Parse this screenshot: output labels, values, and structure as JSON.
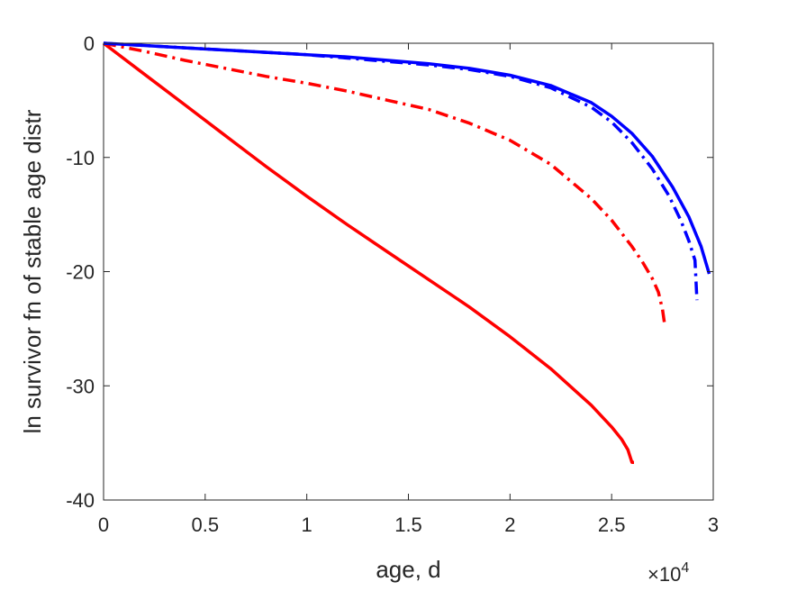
{
  "chart_data": {
    "type": "line",
    "title": "",
    "xlabel": "age, d",
    "ylabel": "ln survivor fn of stable age distr",
    "x_exponent_label": {
      "base": "×10",
      "exponent": "4"
    },
    "xlim": [
      0,
      30000
    ],
    "ylim": [
      -40,
      0
    ],
    "xticks": [
      0,
      5000,
      10000,
      15000,
      20000,
      25000,
      30000
    ],
    "xtick_labels": [
      "0",
      "0.5",
      "1",
      "1.5",
      "2",
      "2.5",
      "3"
    ],
    "yticks": [
      -40,
      -30,
      -20,
      -10,
      0
    ],
    "ytick_labels": [
      "-40",
      "-30",
      "-20",
      "-10",
      "0"
    ],
    "grid": false,
    "series": [
      {
        "color": "#ff0000",
        "style": "solid",
        "x": [
          0,
          2000,
          4000,
          6000,
          8000,
          10000,
          12000,
          14000,
          16000,
          18000,
          20000,
          22000,
          24000,
          25000,
          25500,
          25800,
          26000,
          26100
        ],
        "y": [
          0,
          -2.7,
          -5.4,
          -8.1,
          -10.8,
          -13.4,
          -15.9,
          -18.3,
          -20.7,
          -23.1,
          -25.7,
          -28.5,
          -31.7,
          -33.6,
          -34.7,
          -35.6,
          -36.7,
          -36.7
        ]
      },
      {
        "color": "#ff0000",
        "style": "dashdot",
        "x": [
          0,
          2000,
          4000,
          6000,
          8000,
          10000,
          12000,
          14000,
          16000,
          18000,
          20000,
          22000,
          24000,
          25000,
          26000,
          26500,
          27000,
          27300,
          27500,
          27600
        ],
        "y": [
          0,
          -0.7,
          -1.5,
          -2.2,
          -2.9,
          -3.5,
          -4.2,
          -5.0,
          -5.8,
          -7.0,
          -8.5,
          -10.6,
          -13.6,
          -15.5,
          -17.8,
          -19.1,
          -20.6,
          -21.8,
          -23.3,
          -24.5
        ]
      },
      {
        "color": "#0000ff",
        "style": "dashdot",
        "x": [
          0,
          2000,
          4000,
          6000,
          8000,
          10000,
          12000,
          14000,
          16000,
          18000,
          20000,
          22000,
          24000,
          25000,
          26000,
          27000,
          27800,
          28400,
          28800,
          29100,
          29200
        ],
        "y": [
          0,
          -0.2,
          -0.4,
          -0.6,
          -0.8,
          -1.0,
          -1.3,
          -1.6,
          -1.9,
          -2.3,
          -2.9,
          -3.9,
          -5.6,
          -6.9,
          -8.7,
          -11.0,
          -13.3,
          -15.5,
          -17.3,
          -19.0,
          -22.5
        ]
      },
      {
        "color": "#0000ff",
        "style": "solid",
        "x": [
          0,
          2000,
          4000,
          6000,
          8000,
          10000,
          12000,
          14000,
          16000,
          18000,
          20000,
          22000,
          24000,
          25000,
          26000,
          27000,
          28000,
          28800,
          29400,
          29800
        ],
        "y": [
          0,
          -0.2,
          -0.4,
          -0.6,
          -0.8,
          -1.0,
          -1.2,
          -1.5,
          -1.8,
          -2.2,
          -2.8,
          -3.7,
          -5.2,
          -6.4,
          -7.9,
          -9.9,
          -12.6,
          -15.2,
          -17.8,
          -20.2
        ]
      }
    ]
  }
}
